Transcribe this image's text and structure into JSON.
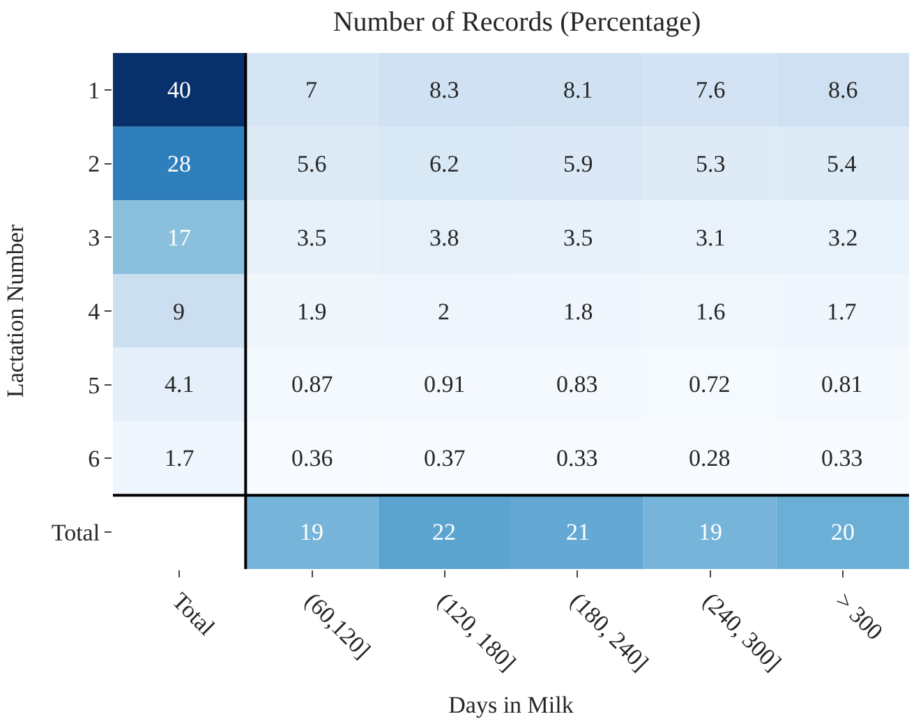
{
  "chart_data": {
    "type": "heatmap",
    "title": "Number of Records (Percentage)",
    "xlabel": "Days in Milk",
    "ylabel": "Lactation Number",
    "categories": [
      "Total",
      "(60,120]",
      "(120, 180]",
      "(180, 240]",
      "(240, 300]",
      "> 300"
    ],
    "y_categories": [
      "1",
      "2",
      "3",
      "4",
      "5",
      "6",
      "Total"
    ],
    "cells": [
      [
        40,
        7,
        8.3,
        8.1,
        7.6,
        8.6
      ],
      [
        28,
        5.6,
        6.2,
        5.9,
        5.3,
        5.4
      ],
      [
        17,
        3.5,
        3.8,
        3.5,
        3.1,
        3.2
      ],
      [
        9,
        1.9,
        2,
        1.8,
        1.6,
        1.7
      ],
      [
        4.1,
        0.87,
        0.91,
        0.83,
        0.72,
        0.81
      ],
      [
        1.7,
        0.36,
        0.37,
        0.33,
        0.28,
        0.33
      ],
      [
        null,
        19,
        22,
        21,
        19,
        20
      ]
    ],
    "data_labels": true
  }
}
